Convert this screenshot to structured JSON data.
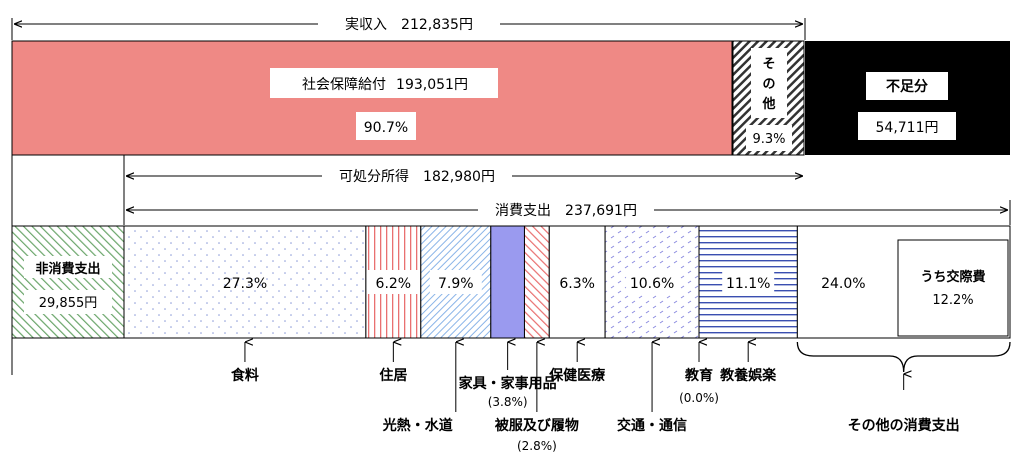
{
  "chart_data": {
    "type": "bar",
    "income": {
      "title": "実収入　212,835円",
      "segments": [
        {
          "name": "社会保障給付",
          "amount": "193,051円",
          "value": 90.7,
          "pct": "90.7%",
          "color": "#ef8985"
        },
        {
          "name": "その他",
          "amount": "",
          "value": 9.3,
          "pct": "9.3%",
          "color": "hatch"
        }
      ],
      "shortfall": {
        "name": "不足分",
        "amount": "54,711円",
        "color": "#000000"
      }
    },
    "disposable_income": "可処分所得　182,980円",
    "consumption_total": "消費支出　237,691円",
    "non_consumption": {
      "name1": "非消費支出",
      "amount": "29,855円"
    },
    "consumption": [
      {
        "key": "food",
        "pct": "27.3%",
        "value": 27.3,
        "label": "食料"
      },
      {
        "key": "housing",
        "pct": "6.2%",
        "value": 6.2,
        "label": "住居"
      },
      {
        "key": "utilities",
        "pct": "7.9%",
        "value": 7.9,
        "label": "光熱・水道"
      },
      {
        "key": "furniture",
        "pct": "",
        "value": 3.8,
        "label": "家具・家事用品",
        "sub": "(3.8%)"
      },
      {
        "key": "clothing",
        "pct": "",
        "value": 2.8,
        "label": "被服及び履物",
        "sub": "(2.8%)"
      },
      {
        "key": "medical",
        "pct": "6.3%",
        "value": 6.3,
        "label": "保健医療"
      },
      {
        "key": "transport",
        "pct": "10.6%",
        "value": 10.6,
        "label": "交通・通信"
      },
      {
        "key": "education",
        "pct": "",
        "value": 0.0,
        "label": "教育",
        "sub": "(0.0%)"
      },
      {
        "key": "recreation",
        "pct": "11.1%",
        "value": 11.1,
        "label": "教養娯楽"
      },
      {
        "key": "other",
        "pct": "24.0%",
        "value": 24.0,
        "label": "その他の消費支出",
        "inner": "うち交際費",
        "inner_pct": "12.2%"
      }
    ]
  }
}
